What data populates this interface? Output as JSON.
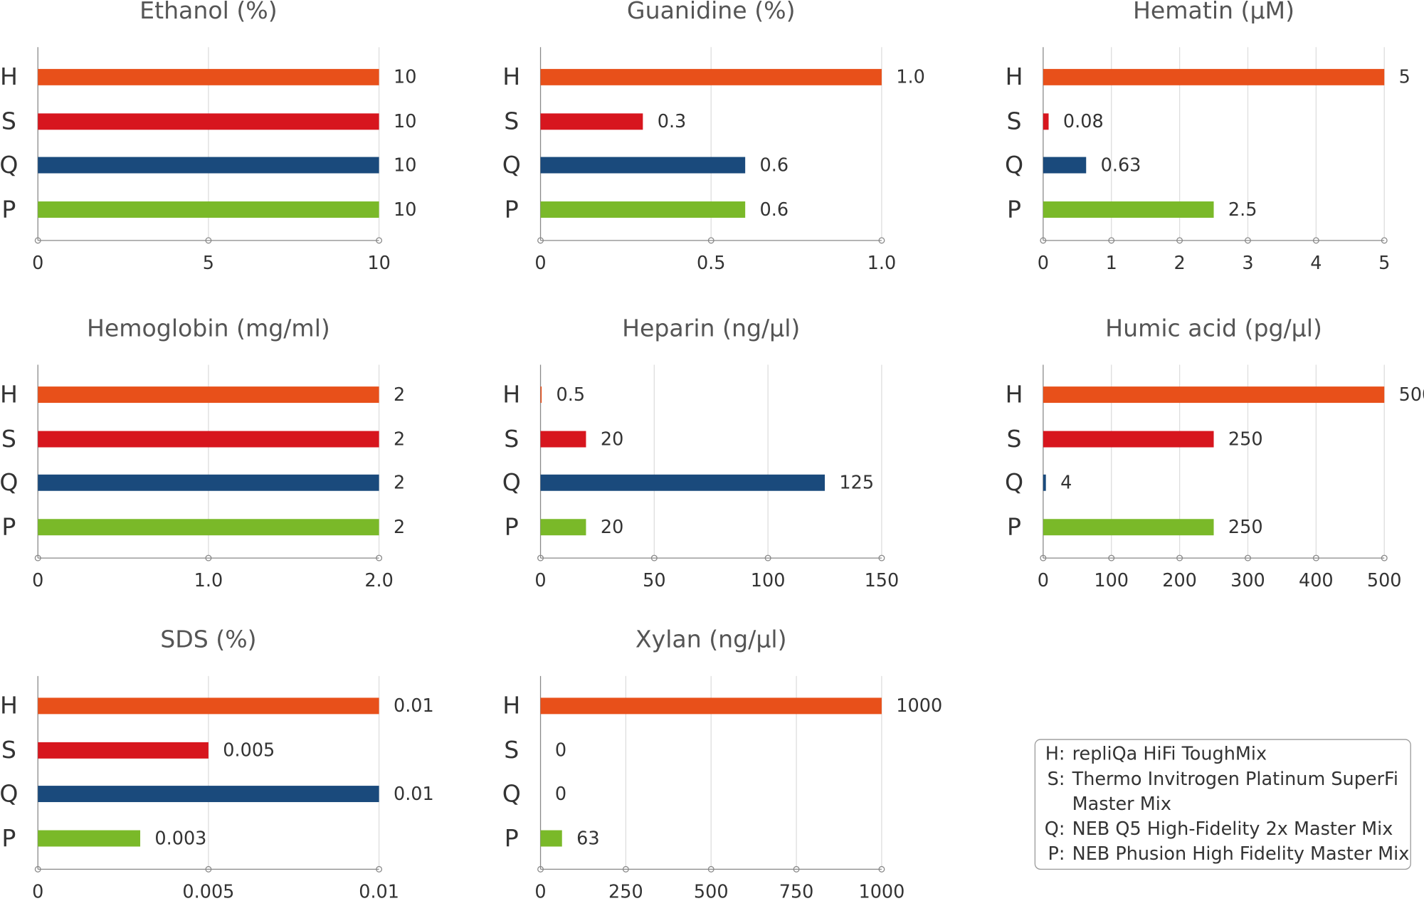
{
  "chart_data": [
    {
      "type": "bar",
      "title": "Ethanol (%)",
      "categories": [
        "H",
        "S",
        "Q",
        "P"
      ],
      "values": [
        10,
        10,
        10,
        10
      ],
      "colors": [
        "#e8501a",
        "#d7161e",
        "#1a4a7c",
        "#7ab929"
      ],
      "xlim": [
        0,
        10
      ],
      "xticks": [
        0,
        5,
        10
      ],
      "grid": true
    },
    {
      "type": "bar",
      "title": "Guanidine (%)",
      "categories": [
        "H",
        "S",
        "Q",
        "P"
      ],
      "values": [
        1,
        0.3,
        0.6,
        0.6
      ],
      "value_labels": [
        "1.0",
        "0.3",
        "0.6",
        "0.6"
      ],
      "colors": [
        "#e8501a",
        "#d7161e",
        "#1a4a7c",
        "#7ab929"
      ],
      "xlim": [
        0,
        1
      ],
      "xticks": [
        0,
        0.5,
        {
          "value": 1,
          "label": "1.0"
        }
      ],
      "grid": true
    },
    {
      "type": "bar",
      "title": "Hematin (µM)",
      "categories": [
        "H",
        "S",
        "Q",
        "P"
      ],
      "values": [
        5,
        0.08,
        0.63,
        2.5
      ],
      "colors": [
        "#e8501a",
        "#d7161e",
        "#1a4a7c",
        "#7ab929"
      ],
      "xlim": [
        0,
        5
      ],
      "xticks": [
        0,
        1,
        2,
        3,
        4,
        5
      ],
      "grid": true
    },
    {
      "type": "bar",
      "title": "Hemoglobin (mg/ml)",
      "categories": [
        "H",
        "S",
        "Q",
        "P"
      ],
      "values": [
        2,
        2,
        2,
        2
      ],
      "colors": [
        "#e8501a",
        "#d7161e",
        "#1a4a7c",
        "#7ab929"
      ],
      "xlim": [
        0,
        2
      ],
      "xticks": [
        0,
        {
          "value": 1,
          "label": "1.0"
        },
        {
          "value": 2,
          "label": "2.0"
        }
      ],
      "grid": true
    },
    {
      "type": "bar",
      "title": "Heparin (ng/µl)",
      "categories": [
        "H",
        "S",
        "Q",
        "P"
      ],
      "values": [
        0.5,
        20,
        125,
        20
      ],
      "colors": [
        "#e8501a",
        "#d7161e",
        "#1a4a7c",
        "#7ab929"
      ],
      "xlim": [
        0,
        150
      ],
      "xticks": [
        0,
        50,
        100,
        150
      ],
      "grid": true
    },
    {
      "type": "bar",
      "title": "Humic acid (pg/µl)",
      "categories": [
        "H",
        "S",
        "Q",
        "P"
      ],
      "values": [
        500,
        250,
        4,
        250
      ],
      "colors": [
        "#e8501a",
        "#d7161e",
        "#1a4a7c",
        "#7ab929"
      ],
      "xlim": [
        0,
        500
      ],
      "xticks": [
        0,
        100,
        200,
        300,
        400,
        500
      ],
      "grid": true
    },
    {
      "type": "bar",
      "title": "SDS (%)",
      "categories": [
        "H",
        "S",
        "Q",
        "P"
      ],
      "values": [
        0.01,
        0.005,
        0.01,
        0.003
      ],
      "colors": [
        "#e8501a",
        "#d7161e",
        "#1a4a7c",
        "#7ab929"
      ],
      "xlim": [
        0,
        0.01
      ],
      "xticks": [
        0,
        0.005,
        0.01
      ],
      "grid": true
    },
    {
      "type": "bar",
      "title": "Xylan (ng/µl)",
      "categories": [
        "H",
        "S",
        "Q",
        "P"
      ],
      "values": [
        1000,
        0,
        0,
        63
      ],
      "colors": [
        "#e8501a",
        "#d7161e",
        "#1a4a7c",
        "#7ab929"
      ],
      "xlim": [
        0,
        1000
      ],
      "xticks": [
        0,
        250,
        500,
        750,
        1000
      ],
      "grid": true
    }
  ],
  "legend": {
    "entries": [
      {
        "key": "H:",
        "label_lines": [
          "repliQa HiFi ToughMix"
        ]
      },
      {
        "key": "S:",
        "label_lines": [
          "Thermo Invitrogen Platinum SuperFi",
          "Master Mix"
        ]
      },
      {
        "key": "Q:",
        "label_lines": [
          "NEB Q5 High-Fidelity 2x Master Mix"
        ]
      },
      {
        "key": "P:",
        "label_lines": [
          "NEB Phusion High Fidelity Master Mix"
        ]
      }
    ]
  }
}
